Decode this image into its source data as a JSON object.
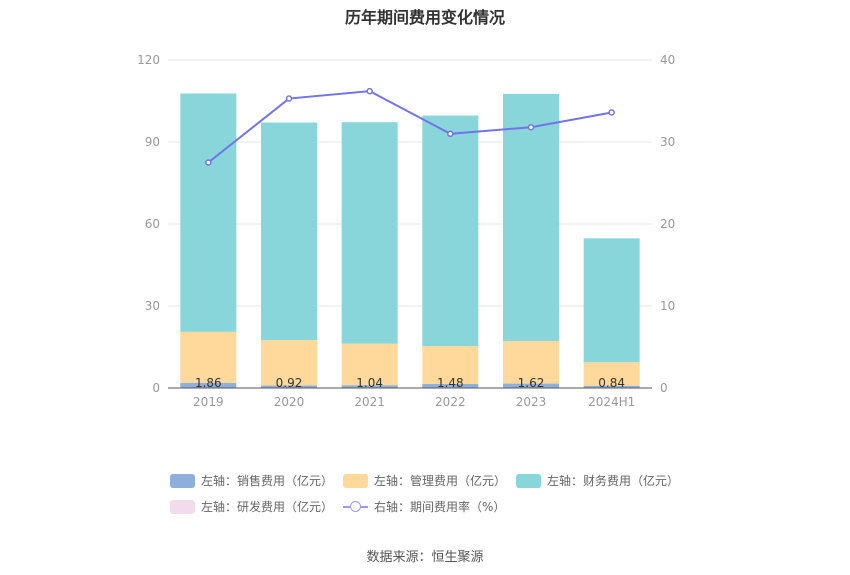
{
  "title": "历年期间费用变化情况",
  "source": "数据来源：恒生聚源",
  "colors": {
    "sales": "#8eaedb",
    "management": "#fed99b",
    "finance": "#88d5da",
    "rd": "#f2dcec",
    "rate": "#7474ea"
  },
  "legend": {
    "sales": "左轴：销售费用（亿元）",
    "management": "左轴：管理费用（亿元）",
    "finance": "左轴：财务费用（亿元）",
    "rd": "左轴：研发费用（亿元）",
    "rate": "右轴：期间费用率（%）"
  },
  "chart_data": {
    "type": "bar",
    "stacked": true,
    "categories": [
      "2019",
      "2020",
      "2021",
      "2022",
      "2023",
      "2024H1"
    ],
    "y_left": {
      "min": 0,
      "max": 120,
      "ticks": [
        0,
        30,
        60,
        90,
        120
      ]
    },
    "y_right": {
      "min": 0,
      "max": 40,
      "ticks": [
        0,
        10,
        20,
        30,
        40
      ]
    },
    "series": [
      {
        "key": "sales",
        "name": "左轴：销售费用（亿元）",
        "axis": "left",
        "values": [
          1.86,
          0.92,
          1.04,
          1.48,
          1.62,
          0.84
        ],
        "labels": [
          "1.86",
          "0.92",
          "1.04",
          "1.48",
          "1.62",
          "0.84"
        ]
      },
      {
        "key": "management",
        "name": "左轴：管理费用（亿元）",
        "axis": "left",
        "values": [
          18.7,
          16.6,
          15.2,
          13.9,
          15.6,
          8.6
        ]
      },
      {
        "key": "finance",
        "name": "左轴：财务费用（亿元）",
        "axis": "left",
        "values": [
          87.2,
          79.6,
          81.0,
          84.3,
          90.4,
          45.3
        ]
      },
      {
        "key": "rd",
        "name": "左轴：研发费用（亿元）",
        "axis": "left",
        "values": [
          0,
          0,
          0,
          0,
          0,
          0
        ]
      },
      {
        "key": "rate",
        "name": "右轴：期间费用率（%）",
        "axis": "right",
        "type": "line",
        "values": [
          27.5,
          35.3,
          36.2,
          31.0,
          31.8,
          33.6
        ]
      }
    ],
    "grid": true,
    "legend_position": "bottom"
  }
}
